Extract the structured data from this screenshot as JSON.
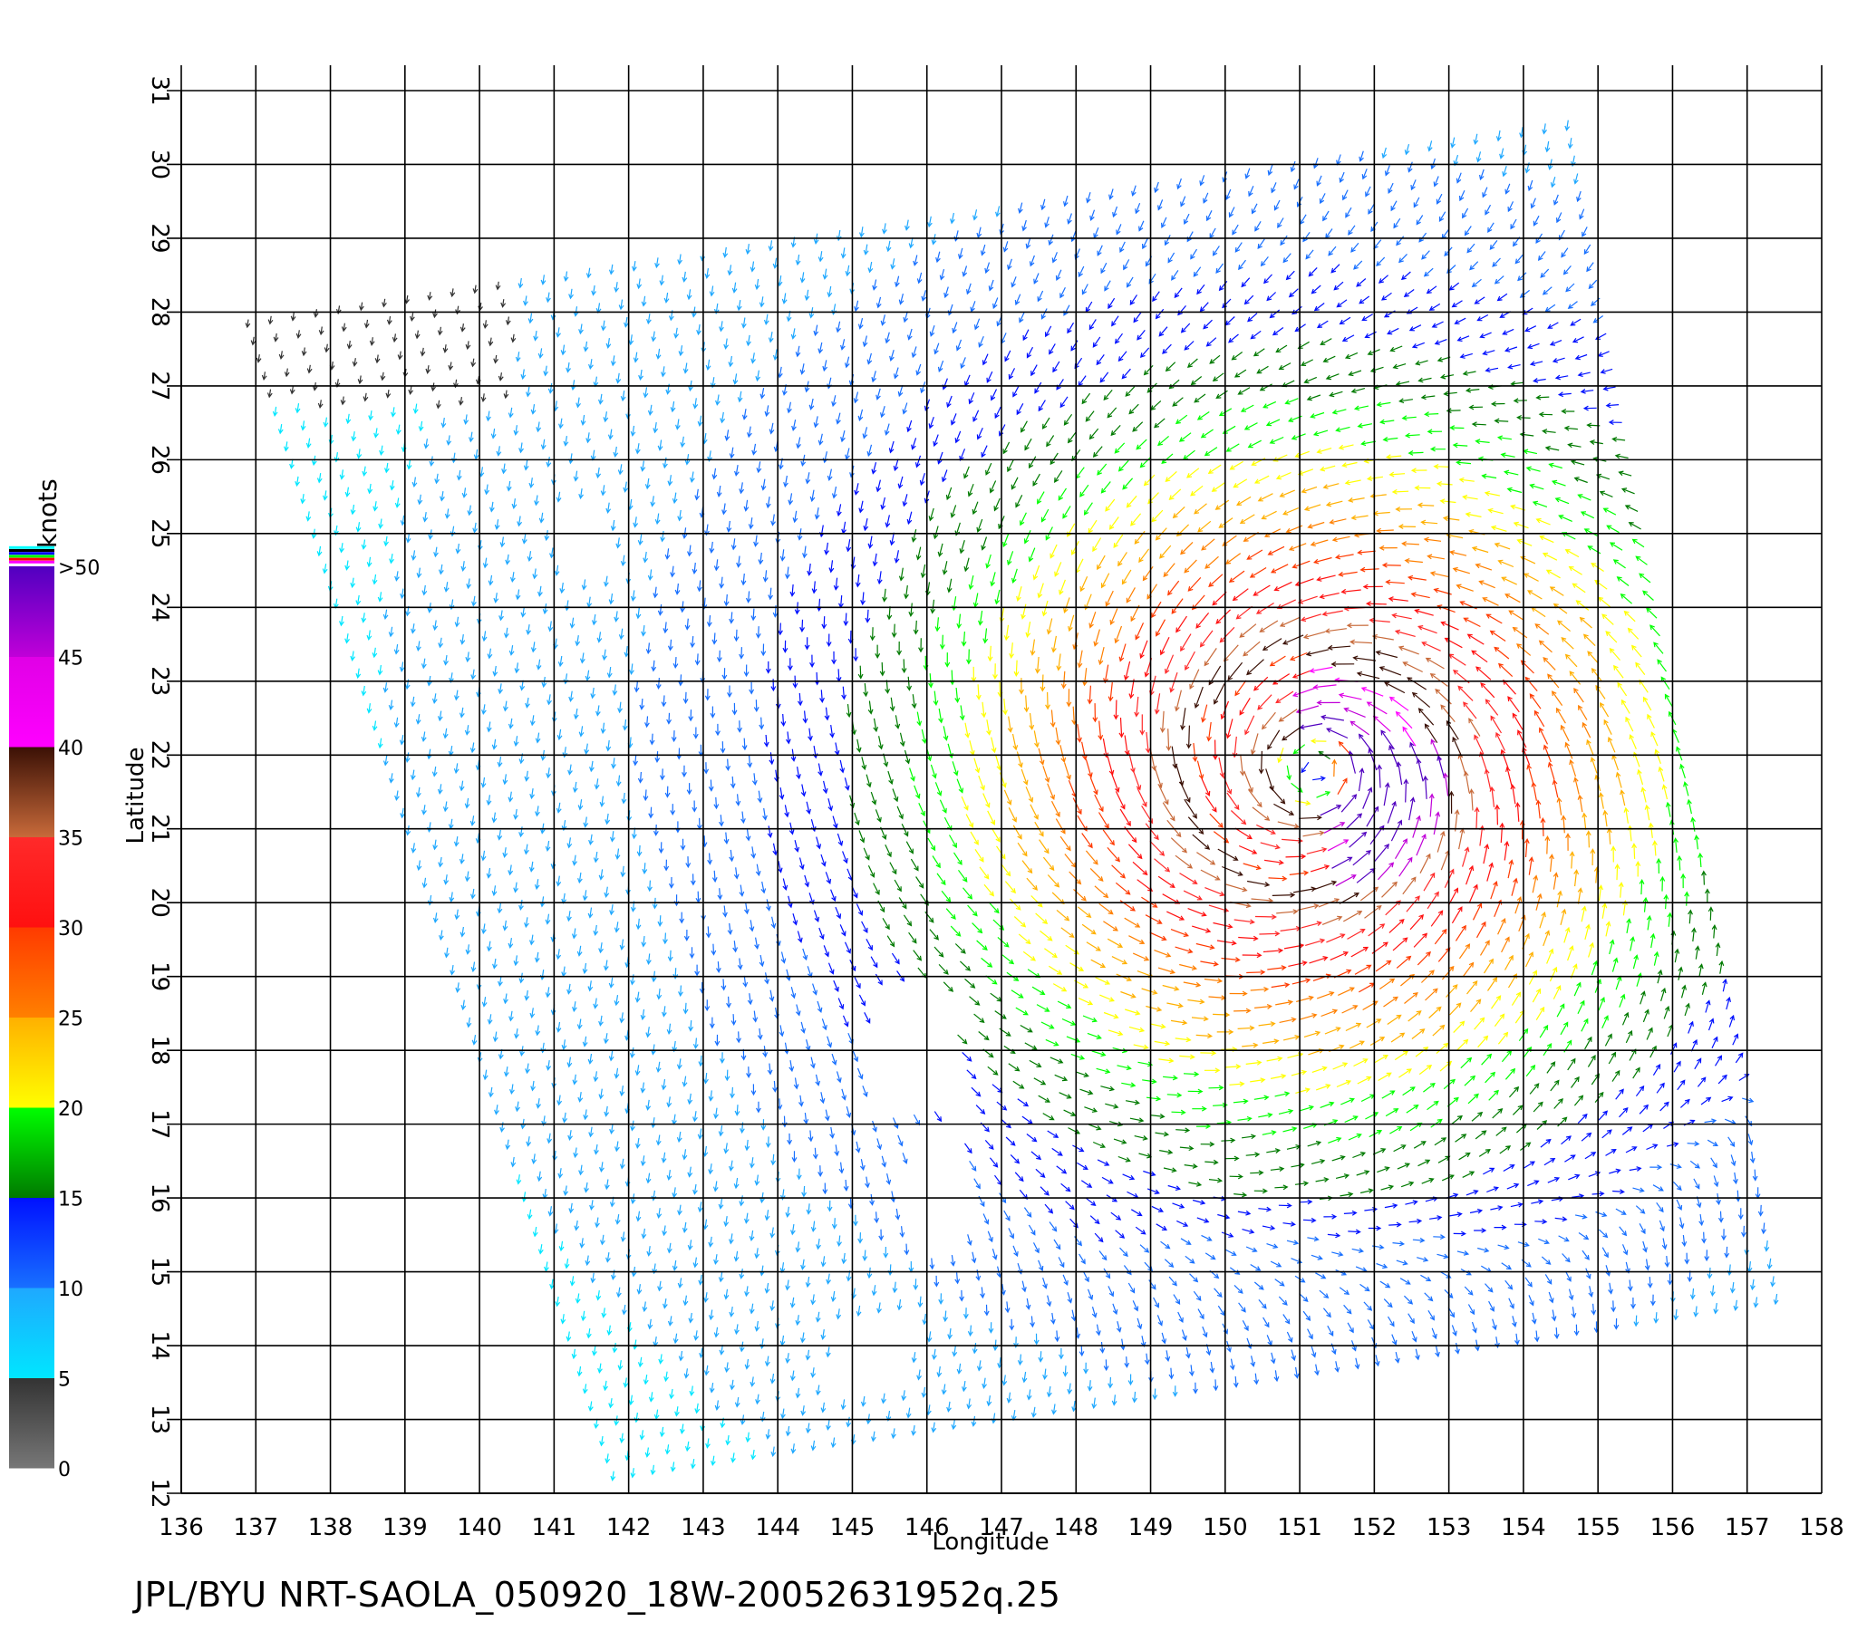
{
  "chart_data": {
    "type": "vector-field",
    "xlabel": "Longitude",
    "ylabel": "Latitude",
    "xlim": [
      136,
      158
    ],
    "ylim": [
      12,
      31
    ],
    "x_ticks": [
      "136",
      "137",
      "138",
      "139",
      "140",
      "141",
      "142",
      "143",
      "144",
      "145",
      "146",
      "147",
      "148",
      "149",
      "150",
      "151",
      "152",
      "153",
      "154",
      "155",
      "156",
      "157",
      "158"
    ],
    "y_ticks": [
      "12",
      "13",
      "14",
      "15",
      "16",
      "17",
      "18",
      "19",
      "20",
      "21",
      "22",
      "23",
      "24",
      "25",
      "26",
      "27",
      "28",
      "29",
      "30",
      "31"
    ],
    "grid": true,
    "colorbar": {
      "title": "knots",
      "labels": [
        "0",
        "5",
        "10",
        "15",
        "20",
        "25",
        "30",
        "35",
        "40",
        "45",
        ">50"
      ],
      "stops": [
        {
          "from": 0,
          "to": 5,
          "colors": [
            "#777777",
            "#333333"
          ]
        },
        {
          "from": 5,
          "to": 10,
          "colors": [
            "#00e6ff",
            "#1fa8ff"
          ]
        },
        {
          "from": 10,
          "to": 15,
          "colors": [
            "#1870ff",
            "#0010ff"
          ]
        },
        {
          "from": 15,
          "to": 20,
          "colors": [
            "#007a00",
            "#00ff00"
          ]
        },
        {
          "from": 20,
          "to": 25,
          "colors": [
            "#ffff00",
            "#ffb000"
          ]
        },
        {
          "from": 25,
          "to": 30,
          "colors": [
            "#ff8000",
            "#ff3a00"
          ]
        },
        {
          "from": 30,
          "to": 35,
          "colors": [
            "#ff1010",
            "#ff2a2a"
          ]
        },
        {
          "from": 35,
          "to": 40,
          "colors": [
            "#c86a3a",
            "#3a1005"
          ]
        },
        {
          "from": 40,
          "to": 45,
          "colors": [
            "#ff00ff",
            "#e000e6"
          ]
        },
        {
          "from": 45,
          "to": 50,
          "colors": [
            "#c000d8",
            "#5000c0"
          ]
        }
      ],
      "top_marks": [
        "#ff00ff",
        "#ff0000",
        "#00ff00",
        "#0000ff",
        "#000000",
        "#00ffff"
      ]
    },
    "cyclone_center": {
      "lon": 151.2,
      "lat": 21.8
    },
    "swath": {
      "corners": [
        [
          136.9,
          27.9
        ],
        [
          154.6,
          30.6
        ],
        [
          157.4,
          14.7
        ],
        [
          141.8,
          12.3
        ]
      ],
      "gaps": [
        {
          "lon": [
            141.1,
            141.7
          ],
          "lat": [
            24.6,
            25.6
          ]
        },
        {
          "lon": [
            145.2,
            146.4
          ],
          "lat": [
            17.2,
            18.9
          ]
        },
        {
          "lon": [
            145.7,
            146.5
          ],
          "lat": [
            15.4,
            17.1
          ]
        },
        {
          "lon": [
            144.7,
            145.8
          ],
          "lat": [
            13.4,
            14.4
          ]
        }
      ]
    }
  },
  "footer": {
    "caption": "JPL/BYU  NRT-SAOLA_050920_18W-20052631952q.25"
  }
}
